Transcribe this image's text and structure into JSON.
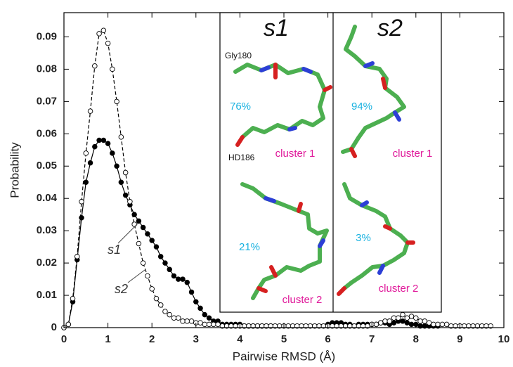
{
  "chart_data": {
    "type": "line",
    "xlabel": "Pairwise RMSD (Å)",
    "ylabel": "Probability",
    "xlim": [
      0,
      10
    ],
    "ylim": [
      0,
      0.0975
    ],
    "xticks": [
      0,
      1,
      2,
      3,
      4,
      5,
      6,
      7,
      8,
      9,
      10
    ],
    "yticks": [
      0,
      0.01,
      0.02,
      0.03,
      0.04,
      0.05,
      0.06,
      0.07,
      0.08,
      0.09
    ],
    "series": [
      {
        "name": "s1",
        "color": "#000000",
        "marker": "filled",
        "linestyle": "solid",
        "x": [
          0,
          0.1,
          0.2,
          0.3,
          0.4,
          0.5,
          0.6,
          0.7,
          0.8,
          0.9,
          1,
          1.1,
          1.2,
          1.3,
          1.4,
          1.5,
          1.6,
          1.7,
          1.8,
          1.9,
          2,
          2.1,
          2.2,
          2.3,
          2.4,
          2.5,
          2.6,
          2.7,
          2.8,
          2.9,
          3,
          3.1,
          3.2,
          3.3,
          3.4,
          3.5,
          3.6,
          3.7,
          3.8,
          3.9,
          4,
          4.1,
          4.2,
          4.3,
          4.4,
          4.5,
          4.6,
          4.7,
          6,
          6.1,
          6.2,
          6.3,
          6.4,
          6.5,
          6.6,
          6.7,
          6.8,
          6.9,
          7,
          7.1,
          7.2,
          7.3,
          7.4,
          7.5,
          7.6,
          7.7,
          7.8,
          7.9,
          8,
          8.1,
          8.2,
          8.3,
          8.4,
          8.5
        ],
        "values": [
          0,
          0.001,
          0.008,
          0.021,
          0.034,
          0.045,
          0.051,
          0.056,
          0.058,
          0.058,
          0.057,
          0.054,
          0.05,
          0.045,
          0.041,
          0.038,
          0.035,
          0.033,
          0.031,
          0.029,
          0.027,
          0.025,
          0.022,
          0.02,
          0.018,
          0.016,
          0.015,
          0.015,
          0.014,
          0.011,
          0.008,
          0.006,
          0.004,
          0.003,
          0.002,
          0.002,
          0.001,
          0.001,
          0.001,
          0.001,
          0.001,
          0.0005,
          0.0005,
          0.0005,
          0.0005,
          0.0005,
          0.0005,
          0.0005,
          0.001,
          0.0015,
          0.0015,
          0.0015,
          0.001,
          0.001,
          0.0005,
          0.001,
          0.001,
          0.001,
          0.001,
          0.001,
          0.0015,
          0.0015,
          0.001,
          0.0015,
          0.002,
          0.002,
          0.0015,
          0.001,
          0.001,
          0.0005,
          0.0005,
          0.0005,
          0.0005,
          0.0005
        ]
      },
      {
        "name": "s2",
        "color": "#000000",
        "marker": "open",
        "linestyle": "dashed",
        "x": [
          0,
          0.1,
          0.2,
          0.3,
          0.4,
          0.5,
          0.6,
          0.7,
          0.8,
          0.9,
          1,
          1.1,
          1.2,
          1.3,
          1.4,
          1.5,
          1.6,
          1.7,
          1.8,
          1.9,
          2,
          2.1,
          2.2,
          2.3,
          2.4,
          2.5,
          2.6,
          2.7,
          2.8,
          2.9,
          3,
          3.1,
          3.2,
          3.3,
          3.4,
          3.5,
          3.6,
          3.7,
          3.8,
          3.9,
          4,
          4.1,
          4.2,
          4.3,
          4.4,
          4.5,
          4.6,
          4.7,
          4.8,
          4.9,
          5,
          5.1,
          5.2,
          5.3,
          5.4,
          5.5,
          5.6,
          5.7,
          5.8,
          5.9,
          6,
          6.1,
          6.2,
          6.3,
          6.4,
          6.5,
          6.6,
          6.7,
          6.8,
          6.9,
          7,
          7.1,
          7.2,
          7.3,
          7.4,
          7.5,
          7.6,
          7.7,
          7.8,
          7.9,
          8,
          8.1,
          8.2,
          8.3,
          8.4,
          8.5,
          8.6,
          8.7,
          8.8,
          8.9,
          9,
          9.1,
          9.2,
          9.3,
          9.4,
          9.5,
          9.6,
          9.7
        ],
        "values": [
          0,
          0.001,
          0.009,
          0.022,
          0.039,
          0.054,
          0.067,
          0.081,
          0.091,
          0.092,
          0.088,
          0.08,
          0.07,
          0.059,
          0.048,
          0.039,
          0.032,
          0.026,
          0.02,
          0.016,
          0.012,
          0.009,
          0.007,
          0.005,
          0.004,
          0.003,
          0.003,
          0.002,
          0.002,
          0.002,
          0.0015,
          0.0015,
          0.001,
          0.001,
          0.001,
          0.001,
          0.0005,
          0.0005,
          0.0005,
          0.0005,
          0.0005,
          0.0005,
          0.0005,
          0.0005,
          0.0005,
          0.0005,
          0.0005,
          0.0005,
          0.0005,
          0.0005,
          0.0005,
          0.0005,
          0.0005,
          0.0005,
          0.0005,
          0.0005,
          0.0005,
          0.0005,
          0.0005,
          0.0005,
          0.0005,
          0.0005,
          0.0005,
          0.0005,
          0.0005,
          0.0005,
          0.0005,
          0.0005,
          0.0005,
          0.0005,
          0.001,
          0.001,
          0.0015,
          0.002,
          0.002,
          0.003,
          0.003,
          0.004,
          0.003,
          0.0035,
          0.003,
          0.002,
          0.002,
          0.0015,
          0.001,
          0.001,
          0.001,
          0.001,
          0.0005,
          0.0005,
          0.0005,
          0.0005,
          0.0005,
          0.0005,
          0.0005,
          0.0005,
          0.0005,
          0.0005
        ]
      }
    ]
  },
  "inset": {
    "panels": [
      {
        "title": "s1",
        "residues": [
          "Gly180",
          "HD186"
        ],
        "clusters": [
          {
            "percent": "76%",
            "name": "cluster 1"
          },
          {
            "percent": "21%",
            "name": "cluster 2"
          }
        ]
      },
      {
        "title": "s2",
        "clusters": [
          {
            "percent": "94%",
            "name": "cluster 1"
          },
          {
            "percent": "3%",
            "name": "cluster 2"
          }
        ]
      }
    ]
  }
}
